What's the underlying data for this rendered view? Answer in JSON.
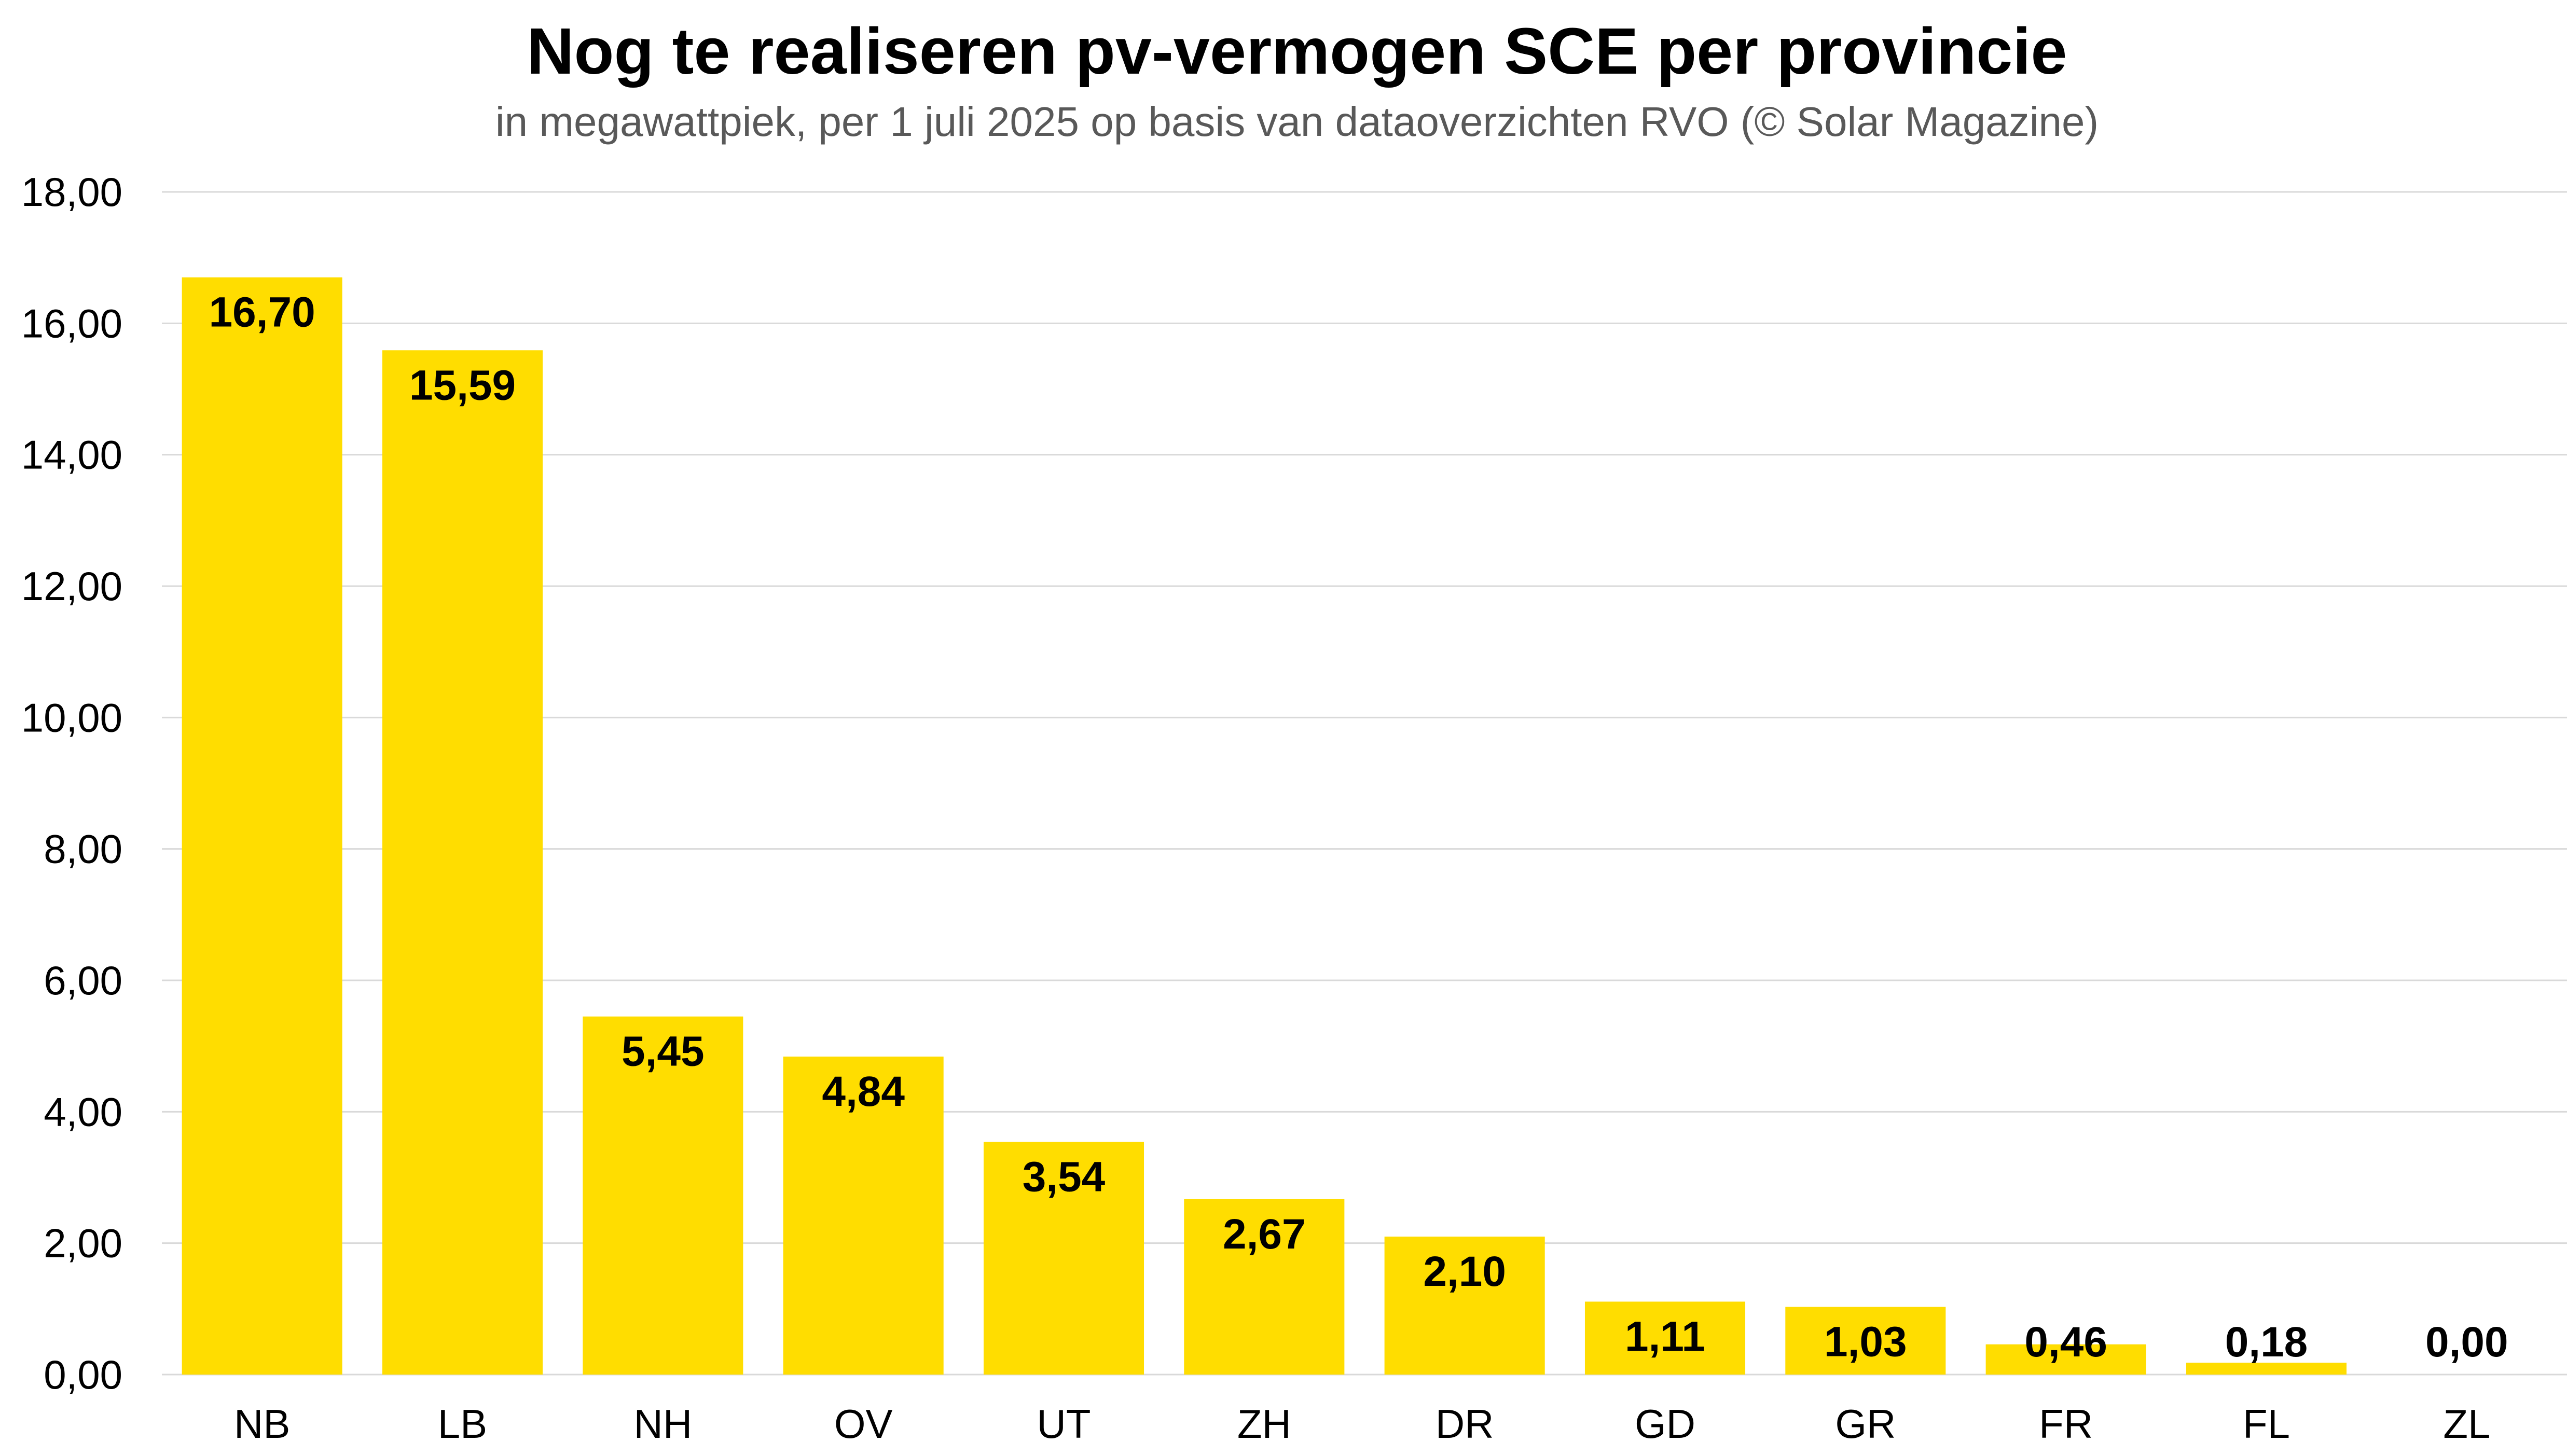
{
  "chart_data": {
    "type": "bar",
    "title": "Nog te realiseren pv-vermogen SCE per provincie",
    "subtitle": "in megawattpiek, per 1 juli 2025 op basis van dataoverzichten RVO (© Solar Magazine)",
    "categories": [
      "NB",
      "LB",
      "NH",
      "OV",
      "UT",
      "ZH",
      "DR",
      "GD",
      "GR",
      "FR",
      "FL",
      "ZL"
    ],
    "values": [
      16.7,
      15.59,
      5.45,
      4.84,
      3.54,
      2.67,
      2.1,
      1.11,
      1.03,
      0.46,
      0.18,
      0.0
    ],
    "value_labels": [
      "16,70",
      "15,59",
      "5,45",
      "4,84",
      "3,54",
      "2,67",
      "2,10",
      "1,11",
      "1,03",
      "0,46",
      "0,18",
      "0,00"
    ],
    "y_ticks": [
      0,
      2,
      4,
      6,
      8,
      10,
      12,
      14,
      16,
      18
    ],
    "y_tick_labels": [
      "0,00",
      "2,00",
      "4,00",
      "6,00",
      "8,00",
      "10,00",
      "12,00",
      "14,00",
      "16,00",
      "18,00"
    ],
    "ylim": [
      0,
      18
    ],
    "xlabel": "",
    "ylabel": "",
    "grid": true,
    "legend": "none",
    "colors": {
      "bar": "#FFDD00",
      "grid": "#D9D9D9",
      "text": "#000000",
      "subtitle": "#595959"
    }
  }
}
